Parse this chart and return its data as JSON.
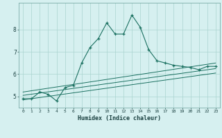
{
  "xlabel": "Humidex (Indice chaleur)",
  "ylabel": "",
  "background_color": "#d6f0f0",
  "line_color": "#1a7060",
  "grid_color": "#aad4d0",
  "xlim": [
    -0.5,
    23.5
  ],
  "ylim": [
    4.5,
    9.2
  ],
  "yticks": [
    5,
    6,
    7,
    8
  ],
  "xticks": [
    0,
    1,
    2,
    3,
    4,
    5,
    6,
    7,
    8,
    9,
    10,
    11,
    12,
    13,
    14,
    15,
    16,
    17,
    18,
    19,
    20,
    21,
    22,
    23
  ],
  "line1_x": [
    0,
    1,
    2,
    3,
    4,
    5,
    6,
    7,
    8,
    9,
    10,
    11,
    12,
    13,
    14,
    15,
    16,
    17,
    18,
    19,
    20,
    21,
    22,
    23
  ],
  "line1_y": [
    4.9,
    4.9,
    5.2,
    5.1,
    4.8,
    5.4,
    5.5,
    6.5,
    7.2,
    7.6,
    8.3,
    7.8,
    7.8,
    8.65,
    8.1,
    7.1,
    6.6,
    6.5,
    6.4,
    6.35,
    6.3,
    6.2,
    6.35,
    6.35
  ],
  "line2_x": [
    0,
    23
  ],
  "line2_y": [
    4.85,
    6.05
  ],
  "line3_x": [
    0,
    23
  ],
  "line3_y": [
    5.05,
    6.25
  ],
  "line4_x": [
    0,
    23
  ],
  "line4_y": [
    5.2,
    6.5
  ]
}
